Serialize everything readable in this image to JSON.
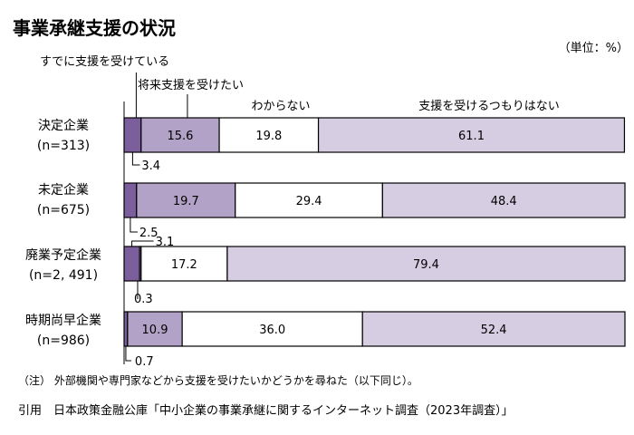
{
  "title": "事業承継支援の状況",
  "unit_label": "（単位：%）",
  "note": "（注） 外部機関や専門家などから支援を受けたいかどうかを尋ねた（以下同じ）。",
  "source": "引用　日本政策金融公庫「中小企業の事業承継に関するインターネット調査（2023年調査）」",
  "colors": {
    "received": "#7b5e9c",
    "want": "#b3a2c8",
    "dont_know": "#ffffff",
    "no_intention": "#d7cde3",
    "border": "#000000"
  },
  "chart_data": {
    "type": "bar",
    "orientation": "horizontal",
    "stacked": true,
    "xlim": [
      0,
      100
    ],
    "categories": [
      {
        "name": "決定企業",
        "n": "(n=313)"
      },
      {
        "name": "未定企業",
        "n": "(n=675)"
      },
      {
        "name": "廃業予定企業",
        "n": "(n=2, 491)"
      },
      {
        "name": "時期尚早企業",
        "n": "(n=986)"
      }
    ],
    "series": [
      {
        "name": "すでに支援を受けている",
        "values": [
          3.4,
          2.5,
          3.1,
          0.7
        ],
        "labels": [
          "3.4",
          "2.5",
          "3.1",
          "0.7"
        ]
      },
      {
        "name": "将来支援を受けたい",
        "values": [
          15.6,
          19.7,
          0.3,
          10.9
        ],
        "labels": [
          "15.6",
          "19.7",
          "0.3",
          "10.9"
        ]
      },
      {
        "name": "わからない",
        "values": [
          19.8,
          29.4,
          17.2,
          36.0
        ],
        "labels": [
          "19.8",
          "29.4",
          "17.2",
          "36.0"
        ]
      },
      {
        "name": "支援を受けるつもりはない",
        "values": [
          61.1,
          48.4,
          79.4,
          52.4
        ],
        "labels": [
          "61.1",
          "48.4",
          "79.4",
          "52.4"
        ]
      }
    ]
  }
}
